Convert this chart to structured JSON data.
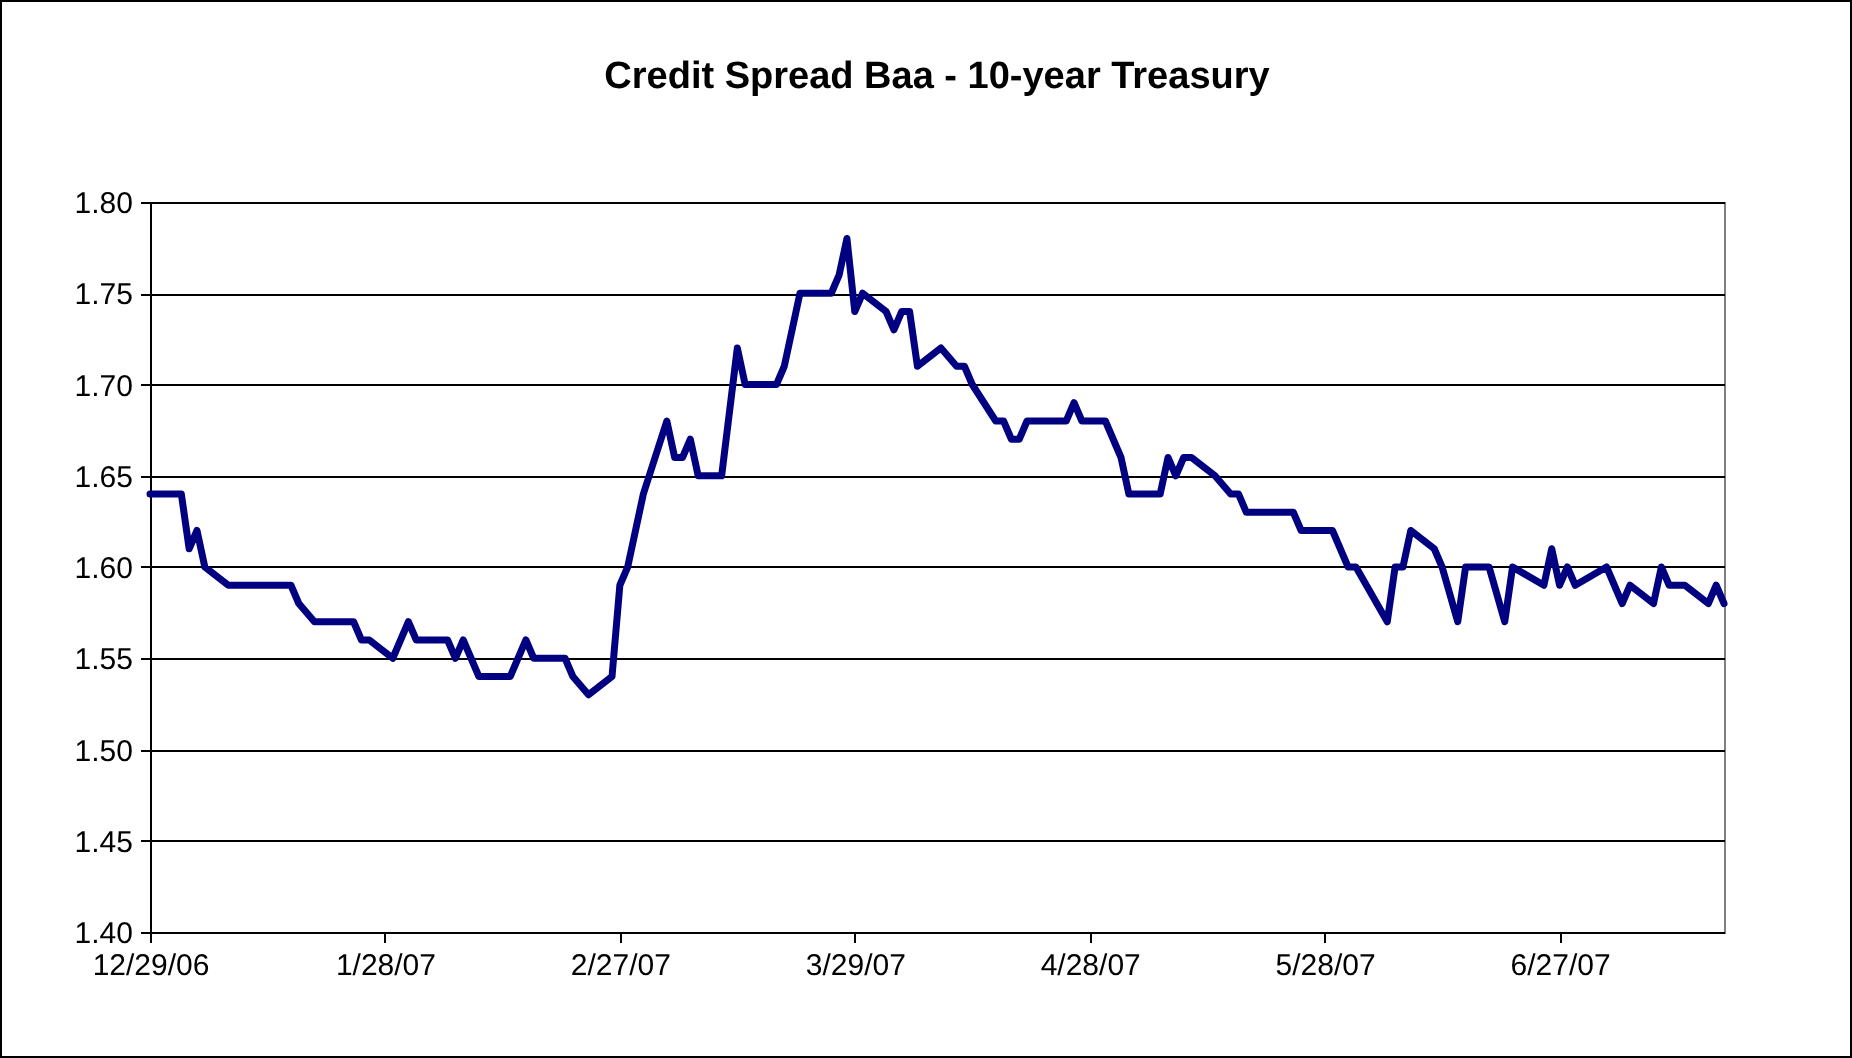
{
  "chart_data": {
    "type": "line",
    "title": "Credit Spread Baa - 10-year Treasury",
    "x": [
      "2006-12-29",
      "2007-01-02",
      "2007-01-03",
      "2007-01-04",
      "2007-01-05",
      "2007-01-08",
      "2007-01-16",
      "2007-01-17",
      "2007-01-19",
      "2007-01-24",
      "2007-01-25",
      "2007-01-26",
      "2007-01-29",
      "2007-01-31",
      "2007-02-01",
      "2007-02-05",
      "2007-02-06",
      "2007-02-07",
      "2007-02-09",
      "2007-02-13",
      "2007-02-15",
      "2007-02-16",
      "2007-02-20",
      "2007-02-21",
      "2007-02-23",
      "2007-02-26",
      "2007-02-27",
      "2007-02-28",
      "2007-03-01",
      "2007-03-02",
      "2007-03-05",
      "2007-03-06",
      "2007-03-07",
      "2007-03-08",
      "2007-03-09",
      "2007-03-12",
      "2007-03-14",
      "2007-03-15",
      "2007-03-19",
      "2007-03-20",
      "2007-03-21",
      "2007-03-22",
      "2007-03-26",
      "2007-03-27",
      "2007-03-28",
      "2007-03-29",
      "2007-03-30",
      "2007-04-02",
      "2007-04-03",
      "2007-04-04",
      "2007-04-05",
      "2007-04-06",
      "2007-04-09",
      "2007-04-11",
      "2007-04-12",
      "2007-04-13",
      "2007-04-16",
      "2007-04-17",
      "2007-04-18",
      "2007-04-19",
      "2007-04-20",
      "2007-04-25",
      "2007-04-26",
      "2007-04-27",
      "2007-04-30",
      "2007-05-02",
      "2007-05-03",
      "2007-05-07",
      "2007-05-08",
      "2007-05-09",
      "2007-05-10",
      "2007-05-11",
      "2007-05-14",
      "2007-05-16",
      "2007-05-17",
      "2007-05-18",
      "2007-05-24",
      "2007-05-25",
      "2007-05-29",
      "2007-05-31",
      "2007-06-01",
      "2007-06-05",
      "2007-06-06",
      "2007-06-07",
      "2007-06-08",
      "2007-06-11",
      "2007-06-12",
      "2007-06-14",
      "2007-06-15",
      "2007-06-18",
      "2007-06-20",
      "2007-06-21",
      "2007-06-25",
      "2007-06-26",
      "2007-06-27",
      "2007-06-28",
      "2007-06-29",
      "2007-07-03",
      "2007-07-05",
      "2007-07-06",
      "2007-07-09",
      "2007-07-10",
      "2007-07-11",
      "2007-07-13",
      "2007-07-16",
      "2007-07-17",
      "2007-07-18"
    ],
    "series": [
      {
        "color": "#000080",
        "values": [
          1.64,
          1.64,
          1.61,
          1.62,
          1.6,
          1.59,
          1.59,
          1.58,
          1.57,
          1.57,
          1.56,
          1.56,
          1.55,
          1.57,
          1.56,
          1.56,
          1.55,
          1.56,
          1.54,
          1.54,
          1.56,
          1.55,
          1.55,
          1.54,
          1.53,
          1.54,
          1.59,
          1.6,
          1.62,
          1.64,
          1.68,
          1.66,
          1.66,
          1.67,
          1.65,
          1.65,
          1.72,
          1.7,
          1.7,
          1.71,
          1.73,
          1.75,
          1.75,
          1.76,
          1.78,
          1.74,
          1.75,
          1.74,
          1.73,
          1.74,
          1.74,
          1.71,
          1.72,
          1.71,
          1.71,
          1.7,
          1.68,
          1.68,
          1.67,
          1.67,
          1.68,
          1.68,
          1.69,
          1.68,
          1.68,
          1.66,
          1.64,
          1.64,
          1.66,
          1.65,
          1.66,
          1.66,
          1.65,
          1.64,
          1.64,
          1.63,
          1.63,
          1.62,
          1.62,
          1.6,
          1.6,
          1.57,
          1.6,
          1.6,
          1.62,
          1.61,
          1.6,
          1.57,
          1.6,
          1.6,
          1.57,
          1.6,
          1.59,
          1.61,
          1.59,
          1.6,
          1.59,
          1.6,
          1.58,
          1.59,
          1.58,
          1.6,
          1.59,
          1.59,
          1.58,
          1.59,
          1.58
        ]
      }
    ],
    "xlim": [
      "2006-12-29",
      "2007-07-18"
    ],
    "xticks": [
      {
        "value": "2006-12-29",
        "label": "12/29/06"
      },
      {
        "value": "2007-01-28",
        "label": "1/28/07"
      },
      {
        "value": "2007-02-27",
        "label": "2/27/07"
      },
      {
        "value": "2007-03-29",
        "label": "3/29/07"
      },
      {
        "value": "2007-04-28",
        "label": "4/28/07"
      },
      {
        "value": "2007-05-28",
        "label": "5/28/07"
      },
      {
        "value": "2007-06-27",
        "label": "6/27/07"
      }
    ],
    "ylim": [
      1.4,
      1.8
    ],
    "yticks": [
      {
        "value": 1.4,
        "label": "1.40"
      },
      {
        "value": 1.45,
        "label": "1.45"
      },
      {
        "value": 1.5,
        "label": "1.50"
      },
      {
        "value": 1.55,
        "label": "1.55"
      },
      {
        "value": 1.6,
        "label": "1.60"
      },
      {
        "value": 1.65,
        "label": "1.65"
      },
      {
        "value": 1.7,
        "label": "1.70"
      },
      {
        "value": 1.75,
        "label": "1.75"
      },
      {
        "value": 1.8,
        "label": "1.80"
      }
    ],
    "grid": "y",
    "marker": "none",
    "line_style": "solid"
  }
}
